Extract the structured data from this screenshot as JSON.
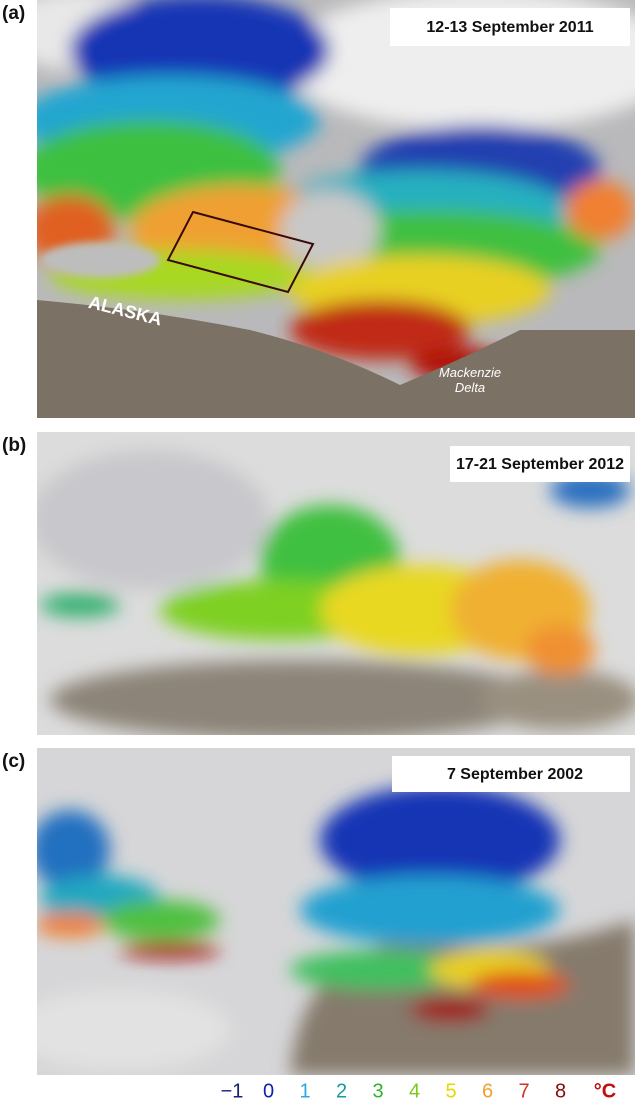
{
  "panels": [
    {
      "letter": "(a)",
      "date": "12-13 September 2011",
      "place_labels": [
        "ALASKA",
        "Mackenzie Delta"
      ]
    },
    {
      "letter": "(b)",
      "date": "17-21 September 2012"
    },
    {
      "letter": "(c)",
      "date": "7 September 2002"
    }
  ],
  "legend": {
    "ticks": [
      "−1",
      "0",
      "1",
      "2",
      "3",
      "4",
      "5",
      "6",
      "7",
      "8"
    ],
    "colors": [
      "#1a2270",
      "#1020b0",
      "#2aa8e0",
      "#179a9a",
      "#2db52d",
      "#7cc81a",
      "#e8d800",
      "#f0a030",
      "#c83a20",
      "#8a0a0a"
    ],
    "unit": "°C",
    "unit_color": "#c01010"
  }
}
